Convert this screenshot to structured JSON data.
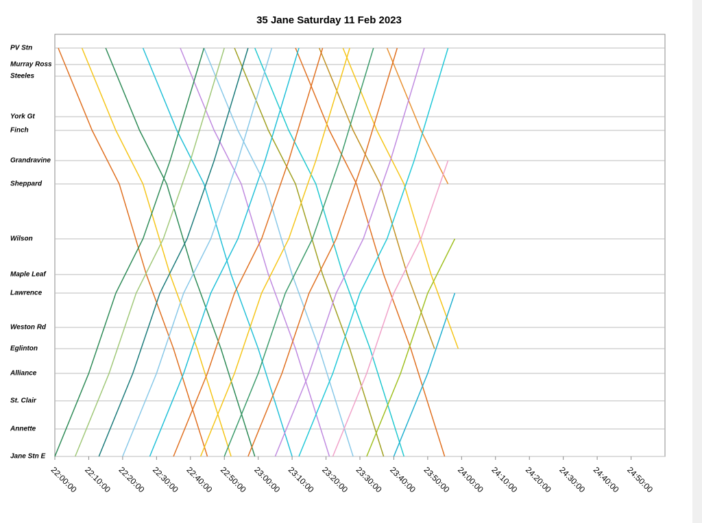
{
  "chart_data": {
    "type": "line",
    "title": "35 Jane Saturday 11 Feb 2023",
    "xlim": [
      1320,
      1500
    ],
    "xticks": [
      {
        "value": 1320,
        "label": "22:00:00"
      },
      {
        "value": 1330,
        "label": "22:10:00"
      },
      {
        "value": 1340,
        "label": "22:20:00"
      },
      {
        "value": 1350,
        "label": "22:30:00"
      },
      {
        "value": 1360,
        "label": "22:40:00"
      },
      {
        "value": 1370,
        "label": "22:50:00"
      },
      {
        "value": 1380,
        "label": "23:00:00"
      },
      {
        "value": 1390,
        "label": "23:10:00"
      },
      {
        "value": 1400,
        "label": "23:20:00"
      },
      {
        "value": 1410,
        "label": "23:30:00"
      },
      {
        "value": 1420,
        "label": "23:40:00"
      },
      {
        "value": 1430,
        "label": "23:50:00"
      },
      {
        "value": 1440,
        "label": "24:00:00"
      },
      {
        "value": 1450,
        "label": "24:10:00"
      },
      {
        "value": 1460,
        "label": "24:20:00"
      },
      {
        "value": 1470,
        "label": "24:30:00"
      },
      {
        "value": 1480,
        "label": "24:40:00"
      },
      {
        "value": 1490,
        "label": "24:50:00"
      }
    ],
    "ylim": [
      0,
      61.5
    ],
    "yticks": [
      {
        "value": 0,
        "label": "Jane Stn E"
      },
      {
        "value": 4.0,
        "label": "Annette"
      },
      {
        "value": 8.1,
        "label": "St. Clair"
      },
      {
        "value": 12.1,
        "label": "Alliance"
      },
      {
        "value": 15.7,
        "label": "Eglinton"
      },
      {
        "value": 18.8,
        "label": "Weston Rd"
      },
      {
        "value": 23.8,
        "label": "Lawrence"
      },
      {
        "value": 26.5,
        "label": "Maple Leaf"
      },
      {
        "value": 31.7,
        "label": "Wilson"
      },
      {
        "value": 39.7,
        "label": "Sheppard"
      },
      {
        "value": 43.1,
        "label": "Grandravine"
      },
      {
        "value": 47.5,
        "label": "Finch"
      },
      {
        "value": 49.5,
        "label": "York Gt"
      },
      {
        "value": 55.4,
        "label": "Steeles"
      },
      {
        "value": 57.1,
        "label": "Murray Ross"
      },
      {
        "value": 59.5,
        "label": "PV Stn"
      }
    ],
    "grid": true,
    "series": [
      {
        "color": "#e07020",
        "x": [
          1321,
          1331,
          1339,
          1347,
          1355,
          1365
        ],
        "values": [
          59.5,
          47.5,
          39.7,
          26.5,
          15.7,
          0
        ]
      },
      {
        "color": "#f5c518",
        "x": [
          1328,
          1338,
          1346,
          1354,
          1362,
          1372
        ],
        "values": [
          59.5,
          47.5,
          39.7,
          26.5,
          15.7,
          0
        ]
      },
      {
        "color": "#2e8b57",
        "x": [
          1335,
          1345,
          1353,
          1361,
          1369,
          1379
        ],
        "values": [
          59.5,
          47.5,
          39.7,
          26.5,
          15.7,
          0
        ]
      },
      {
        "color": "#22c0d8",
        "x": [
          1346,
          1356,
          1364,
          1372,
          1380,
          1390
        ],
        "values": [
          59.5,
          47.5,
          39.7,
          26.5,
          15.7,
          0
        ]
      },
      {
        "color": "#c08ae0",
        "x": [
          1357,
          1367,
          1375,
          1383,
          1391,
          1401
        ],
        "values": [
          59.5,
          47.5,
          39.7,
          26.5,
          15.7,
          0
        ]
      },
      {
        "color": "#88c8e8",
        "x": [
          1364,
          1374,
          1382,
          1390,
          1398,
          1408
        ],
        "values": [
          59.5,
          47.5,
          39.7,
          26.5,
          15.7,
          0
        ]
      },
      {
        "color": "#a0a020",
        "x": [
          1373,
          1383,
          1391,
          1399,
          1407,
          1417
        ],
        "values": [
          59.5,
          47.5,
          39.7,
          26.5,
          15.7,
          0
        ]
      },
      {
        "color": "#20c8d0",
        "x": [
          1379,
          1389,
          1397,
          1405,
          1413,
          1423
        ],
        "values": [
          59.5,
          47.5,
          39.7,
          26.5,
          15.7,
          0
        ]
      },
      {
        "color": "#e07020",
        "x": [
          1391,
          1401,
          1409,
          1417,
          1425,
          1435
        ],
        "values": [
          59.5,
          47.5,
          39.7,
          26.5,
          15.7,
          0
        ]
      },
      {
        "color": "#c09020",
        "x": [
          1398,
          1408,
          1416,
          1424,
          1432
        ],
        "values": [
          59.5,
          47.5,
          39.7,
          26.5,
          15.7
        ]
      },
      {
        "color": "#f5c518",
        "x": [
          1405,
          1415,
          1423,
          1431,
          1439
        ],
        "values": [
          59.5,
          47.5,
          39.7,
          26.5,
          15.7
        ]
      },
      {
        "color": "#e89030",
        "x": [
          1418,
          1428,
          1436
        ],
        "values": [
          59.5,
          47.5,
          39.7
        ]
      },
      {
        "color": "#2e8b57",
        "x": [
          1320,
          1330,
          1338,
          1346,
          1354,
          1364
        ],
        "values": [
          0,
          12.1,
          23.8,
          31.7,
          43.1,
          59.5
        ]
      },
      {
        "color": "#a0c878",
        "x": [
          1326,
          1336,
          1344,
          1352,
          1360,
          1370
        ],
        "values": [
          0,
          12.1,
          23.8,
          31.7,
          43.1,
          59.5
        ]
      },
      {
        "color": "#1a7a7a",
        "x": [
          1333,
          1343,
          1351,
          1359,
          1367,
          1377
        ],
        "values": [
          0,
          12.1,
          23.8,
          31.7,
          43.1,
          59.5
        ]
      },
      {
        "color": "#88c8e8",
        "x": [
          1340,
          1350,
          1358,
          1366,
          1374,
          1384
        ],
        "values": [
          0,
          12.1,
          23.8,
          31.7,
          43.1,
          59.5
        ]
      },
      {
        "color": "#20c0d8",
        "x": [
          1348,
          1358,
          1366,
          1374,
          1382,
          1392
        ],
        "values": [
          0,
          12.1,
          23.8,
          31.7,
          43.1,
          59.5
        ]
      },
      {
        "color": "#e07020",
        "x": [
          1355,
          1365,
          1373,
          1381,
          1389,
          1399
        ],
        "values": [
          0,
          12.1,
          23.8,
          31.7,
          43.1,
          59.5
        ]
      },
      {
        "color": "#f5c518",
        "x": [
          1363,
          1373,
          1381,
          1389,
          1397,
          1407
        ],
        "values": [
          0,
          12.1,
          23.8,
          31.7,
          43.1,
          59.5
        ]
      },
      {
        "color": "#3a9a6a",
        "x": [
          1370,
          1380,
          1388,
          1396,
          1404,
          1414
        ],
        "values": [
          0,
          12.1,
          23.8,
          31.7,
          43.1,
          59.5
        ]
      },
      {
        "color": "#e07020",
        "x": [
          1377,
          1387,
          1395,
          1403,
          1411,
          1421
        ],
        "values": [
          0,
          12.1,
          23.8,
          31.7,
          43.1,
          59.5
        ]
      },
      {
        "color": "#c08ae0",
        "x": [
          1385,
          1395,
          1403,
          1411,
          1419,
          1429
        ],
        "values": [
          0,
          12.1,
          23.8,
          31.7,
          43.1,
          59.5
        ]
      },
      {
        "color": "#20c8d8",
        "x": [
          1392,
          1402,
          1410,
          1418,
          1426,
          1436
        ],
        "values": [
          0,
          12.1,
          23.8,
          31.7,
          43.1,
          59.5
        ]
      },
      {
        "color": "#f0a0c8",
        "x": [
          1402,
          1412,
          1420,
          1428,
          1436
        ],
        "values": [
          0,
          12.1,
          23.8,
          31.7,
          43.1
        ]
      },
      {
        "color": "#a0c020",
        "x": [
          1412,
          1422,
          1430,
          1438
        ],
        "values": [
          0,
          12.1,
          23.8,
          31.7
        ]
      },
      {
        "color": "#20b0d0",
        "x": [
          1420,
          1430,
          1438
        ],
        "values": [
          0,
          12.1,
          23.8
        ]
      }
    ]
  }
}
